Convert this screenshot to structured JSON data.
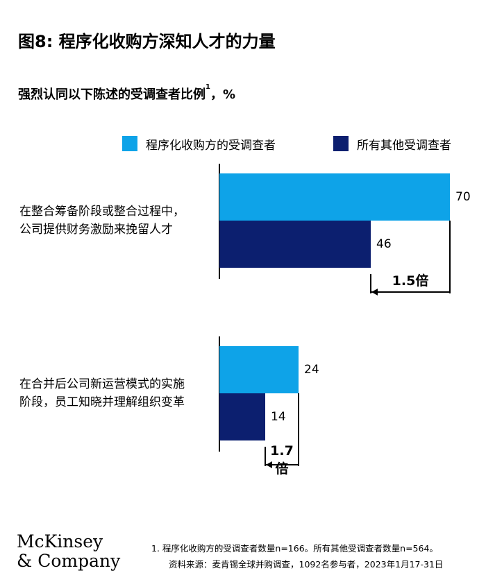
{
  "title": "图8: 程序化收购方深知人才的力量",
  "subtitle": {
    "text": "强烈认同以下陈述的受调查者比例",
    "sup": "1",
    "suffix": "，%"
  },
  "colors": {
    "acquirers": "#0ea3e8",
    "others": "#0c1f6f"
  },
  "chart_data": {
    "type": "bar",
    "orientation": "horizontal",
    "categories": [
      [
        "在整合筹备阶段或整合过程中，",
        "公司提供财务激励来挽留人才"
      ],
      [
        "在合并后公司新运营模式的实施",
        "阶段，员工知晓并理解组织变革"
      ]
    ],
    "series": [
      {
        "name": "程序化收购方的受调查者",
        "values": [
          70,
          24
        ]
      },
      {
        "name": "所有其他受调查者",
        "values": [
          46,
          14
        ]
      }
    ],
    "value_labels": [
      [
        "70",
        "46"
      ],
      [
        "24",
        "14"
      ]
    ],
    "ratios": [
      "1.5倍",
      "1.7倍"
    ],
    "legend_position": "top-right",
    "grid": false
  },
  "footnote": "1.   程序化收购方的受调查者数量n=166。所有其他受调查者数量n=564。",
  "source": "资料来源：麦肯锡全球并购调查，1092名参与者，2023年1月17-31日",
  "logo": {
    "line1": "McKinsey",
    "line2": "& Company"
  }
}
